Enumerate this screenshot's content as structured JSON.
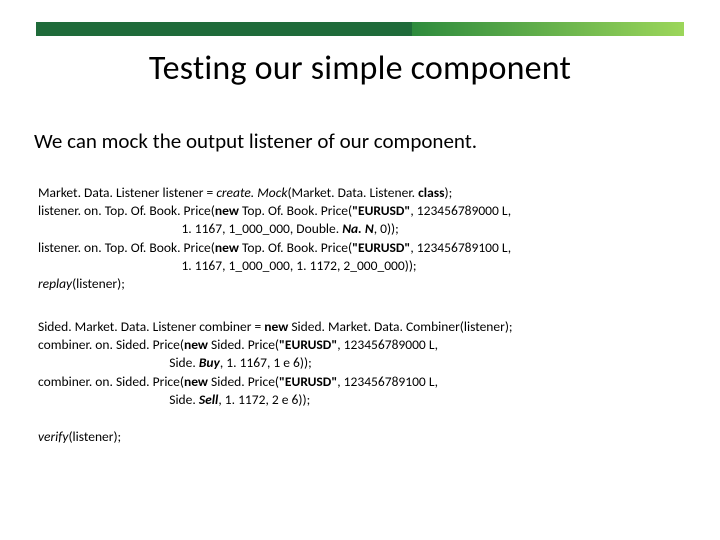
{
  "colors": {
    "topbar_dark": "#1f6b3a",
    "topbar_grad_from": "#2e8b3d",
    "topbar_grad_to": "#9cd65a",
    "text": "#000000",
    "background": "#ffffff"
  },
  "layout": {
    "topbar_dark_width_pct": 58,
    "topbar_grad_width_pct": 42,
    "title_fontsize": 34,
    "subtitle_fontsize": 21,
    "code_fontsize": 13.5
  },
  "title": "Testing our simple component",
  "subtitle": "We can mock the output listener of our component.",
  "code_block_1": {
    "l1_a": "Market. Data. Listener listener = ",
    "l1_b": "create. Mock",
    "l1_c": "(Market. Data. Listener. ",
    "l1_d": "class",
    "l1_e": ");",
    "l2_a": "listener. on. Top. Of. Book. Price(",
    "l2_b": "new ",
    "l2_c": "Top. Of. Book. Price(",
    "l2_d": "\"EURUSD\"",
    "l2_e": ", 123456789000 L,",
    "l3_a": "                                               1. 1167, 1_000_000, Double. ",
    "l3_b": "Na. N",
    "l3_c": ", 0));",
    "l4_a": "listener. on. Top. Of. Book. Price(",
    "l4_b": "new ",
    "l4_c": "Top. Of. Book. Price(",
    "l4_d": "\"EURUSD\"",
    "l4_e": ", 123456789100 L,",
    "l5": "                                               1. 1167, 1_000_000, 1. 1172, 2_000_000));",
    "l6_a": "replay",
    "l6_b": "(listener);"
  },
  "code_block_2": {
    "l1_a": "Sided. Market. Data. Listener combiner = ",
    "l1_b": "new ",
    "l1_c": "Sided. Market. Data. Combiner(listener);",
    "l2_a": "combiner. on. Sided. Price(",
    "l2_b": "new ",
    "l2_c": "Sided. Price(",
    "l2_d": "\"EURUSD\"",
    "l2_e": ", 123456789000 L,",
    "l3_a": "                                           Side. ",
    "l3_b": "Buy",
    "l3_c": ", 1. 1167, 1 e 6));",
    "l4_a": "combiner. on. Sided. Price(",
    "l4_b": "new ",
    "l4_c": "Sided. Price(",
    "l4_d": "\"EURUSD\"",
    "l4_e": ", 123456789100 L,",
    "l5_a": "                                           Side. ",
    "l5_b": "Sell",
    "l5_c": ", 1. 1172, 2 e 6));"
  },
  "code_block_3": {
    "l1_a": "verify",
    "l1_b": "(listener);"
  }
}
